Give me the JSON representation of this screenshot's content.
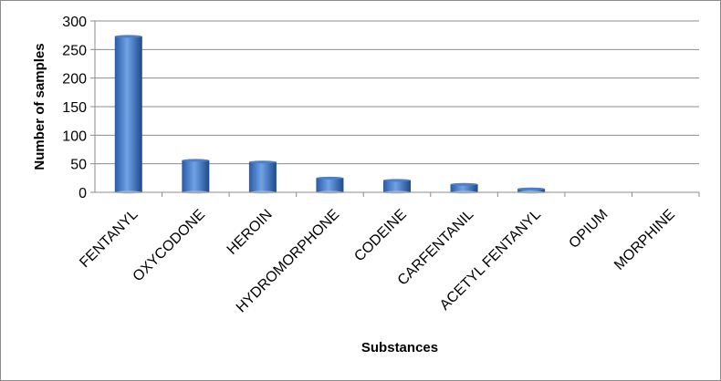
{
  "chart_data": {
    "type": "bar",
    "title": "",
    "xlabel": "Substances",
    "ylabel": "Number of samples",
    "categories": [
      "FENTANYL",
      "OXYCODONE",
      "HEROIN",
      "HYDROMORPHONE",
      "CODEINE",
      "CARFENTANIL",
      "ACETYL FENTANYL",
      "OPIUM",
      "MORPHINE"
    ],
    "values": [
      273,
      56,
      53,
      25,
      21,
      14,
      6,
      1,
      1
    ],
    "ylim": [
      0,
      300
    ],
    "yticks": [
      0,
      50,
      100,
      150,
      200,
      250,
      300
    ],
    "grid": "horizontal",
    "legend": "none",
    "colors": {
      "bar_light": "#6a9ee0",
      "bar_mid": "#3a70c0",
      "bar_dark": "#1c4a8c",
      "grid": "#8c8c8c",
      "frame": "#8c8c8c"
    }
  }
}
